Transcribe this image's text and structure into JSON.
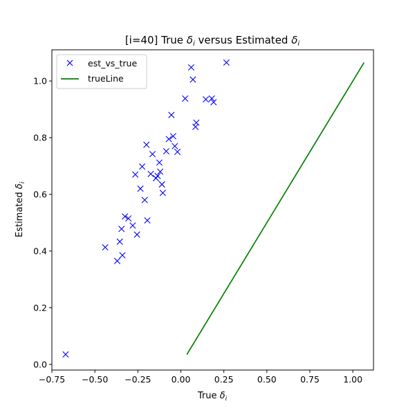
{
  "chart_data": {
    "type": "scatter",
    "title_prefix": "[i=40] True ",
    "title_middle": " versus Estimated ",
    "delta_symbol": "δ",
    "delta_subscript": "i",
    "xlabel_prefix": "True ",
    "ylabel_prefix": "Estimated ",
    "xlim": [
      -0.75,
      1.12
    ],
    "ylim": [
      -0.02,
      1.11
    ],
    "xticks": [
      -0.75,
      -0.5,
      -0.25,
      0.0,
      0.25,
      0.5,
      0.75,
      1.0
    ],
    "xtick_labels": [
      "−0.75",
      "−0.50",
      "−0.25",
      "0.00",
      "0.25",
      "0.50",
      "0.75",
      "1.00"
    ],
    "yticks": [
      0.0,
      0.2,
      0.4,
      0.6,
      0.8,
      1.0
    ],
    "ytick_labels": [
      "0.0",
      "0.2",
      "0.4",
      "0.6",
      "0.8",
      "1.0"
    ],
    "legend_position": "upper-left",
    "series": [
      {
        "name": "est_vs_true",
        "kind": "scatter",
        "marker": "x",
        "color": "#0000ff",
        "points": [
          [
            -0.67,
            0.035
          ],
          [
            -0.44,
            0.413
          ],
          [
            -0.37,
            0.365
          ],
          [
            -0.355,
            0.433
          ],
          [
            -0.34,
            0.385
          ],
          [
            -0.345,
            0.478
          ],
          [
            -0.325,
            0.522
          ],
          [
            -0.305,
            0.515
          ],
          [
            -0.28,
            0.49
          ],
          [
            -0.265,
            0.67
          ],
          [
            -0.255,
            0.458
          ],
          [
            -0.235,
            0.62
          ],
          [
            -0.225,
            0.698
          ],
          [
            -0.21,
            0.58
          ],
          [
            -0.2,
            0.775
          ],
          [
            -0.195,
            0.508
          ],
          [
            -0.175,
            0.672
          ],
          [
            -0.165,
            0.742
          ],
          [
            -0.145,
            0.657
          ],
          [
            -0.135,
            0.665
          ],
          [
            -0.125,
            0.712
          ],
          [
            -0.12,
            0.68
          ],
          [
            -0.11,
            0.635
          ],
          [
            -0.105,
            0.605
          ],
          [
            -0.085,
            0.752
          ],
          [
            -0.07,
            0.795
          ],
          [
            -0.055,
            0.88
          ],
          [
            -0.045,
            0.805
          ],
          [
            -0.035,
            0.77
          ],
          [
            -0.02,
            0.75
          ],
          [
            0.025,
            0.938
          ],
          [
            0.06,
            1.048
          ],
          [
            0.07,
            1.005
          ],
          [
            0.085,
            0.838
          ],
          [
            0.09,
            0.853
          ],
          [
            0.145,
            0.935
          ],
          [
            0.18,
            0.938
          ],
          [
            0.19,
            0.925
          ],
          [
            0.265,
            1.065
          ]
        ]
      },
      {
        "name": "trueLine",
        "kind": "line",
        "color": "#008000",
        "points": [
          [
            0.035,
            0.035
          ],
          [
            1.065,
            1.065
          ]
        ]
      }
    ]
  }
}
